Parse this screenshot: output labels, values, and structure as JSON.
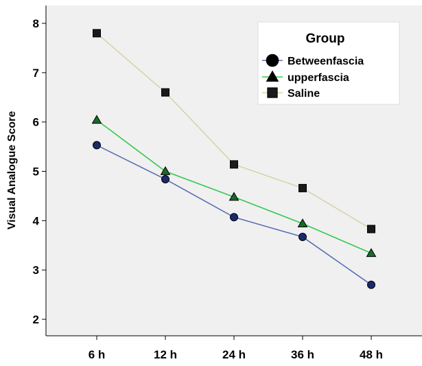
{
  "chart_data": {
    "type": "line",
    "categories": [
      "6 h",
      "12 h",
      "24 h",
      "36 h",
      "48 h"
    ],
    "ylabel": "Visual Analogue Score",
    "xlabel": "",
    "ylim": [
      1.7,
      8.4
    ],
    "yticks": [
      2,
      3,
      4,
      5,
      6,
      7,
      8
    ],
    "grid": false,
    "legend": {
      "title": "Group",
      "placement": "top-right"
    },
    "series": [
      {
        "name": "Betweenfascia",
        "values": [
          5.53,
          4.84,
          4.07,
          3.67,
          2.7
        ],
        "color": "#5b6fb5",
        "marker": "circle",
        "marker_color": "#1a2a6b"
      },
      {
        "name": "upperfascia",
        "values": [
          6.04,
          5.0,
          4.48,
          3.94,
          3.34
        ],
        "color": "#33c94d",
        "marker": "triangle",
        "marker_color": "#1a6b28"
      },
      {
        "name": "Saline",
        "values": [
          7.8,
          6.6,
          5.14,
          4.66,
          3.83
        ],
        "color": "#d8d3a8",
        "marker": "square",
        "marker_color": "#1a1a1a"
      }
    ]
  },
  "colors": {
    "plot_background": "#f0f0f0",
    "axis": "#000000"
  }
}
